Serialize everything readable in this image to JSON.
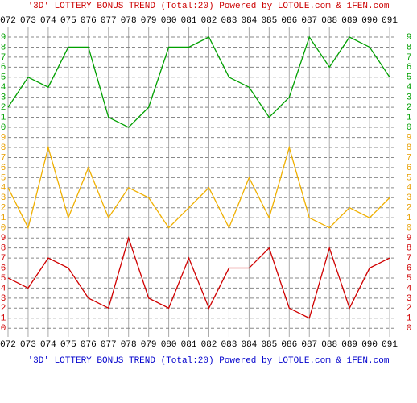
{
  "title": "'3D' LOTTERY BONUS TREND (Total:20)  Powered by LOTOLE.com & 1FEN.com",
  "footer": "'3D' LOTTERY BONUS TREND (Total:20)  Powered by LOTOLE.com & 1FEN.com",
  "chart_data": [
    {
      "type": "line",
      "categories": [
        "072",
        "073",
        "074",
        "075",
        "076",
        "077",
        "078",
        "079",
        "080",
        "081",
        "082",
        "083",
        "084",
        "085",
        "086",
        "087",
        "088",
        "089",
        "090",
        "091"
      ],
      "values": [
        2,
        5,
        4,
        8,
        8,
        1,
        0,
        2,
        8,
        8,
        9,
        5,
        4,
        1,
        3,
        9,
        6,
        9,
        8,
        5
      ],
      "color": "#00a000",
      "ylim": [
        0,
        9
      ],
      "yticks": [
        0,
        1,
        2,
        3,
        4,
        5,
        6,
        7,
        8,
        9
      ],
      "grid": true
    },
    {
      "type": "line",
      "categories": [
        "072",
        "073",
        "074",
        "075",
        "076",
        "077",
        "078",
        "079",
        "080",
        "081",
        "082",
        "083",
        "084",
        "085",
        "086",
        "087",
        "088",
        "089",
        "090",
        "091"
      ],
      "values": [
        4,
        0,
        8,
        1,
        6,
        1,
        4,
        3,
        0,
        2,
        4,
        0,
        5,
        1,
        8,
        1,
        0,
        2,
        1,
        3
      ],
      "color": "#f0b000",
      "ylim": [
        0,
        9
      ],
      "yticks": [
        0,
        1,
        2,
        3,
        4,
        5,
        6,
        7,
        8,
        9
      ],
      "grid": true
    },
    {
      "type": "line",
      "categories": [
        "072",
        "073",
        "074",
        "075",
        "076",
        "077",
        "078",
        "079",
        "080",
        "081",
        "082",
        "083",
        "084",
        "085",
        "086",
        "087",
        "088",
        "089",
        "090",
        "091"
      ],
      "values": [
        5,
        4,
        7,
        6,
        3,
        2,
        9,
        3,
        2,
        7,
        2,
        6,
        6,
        8,
        2,
        1,
        8,
        2,
        6,
        7
      ],
      "color": "#d00000",
      "ylim": [
        0,
        9
      ],
      "yticks": [
        0,
        1,
        2,
        3,
        4,
        5,
        6,
        7,
        8,
        9
      ],
      "grid": true
    }
  ]
}
